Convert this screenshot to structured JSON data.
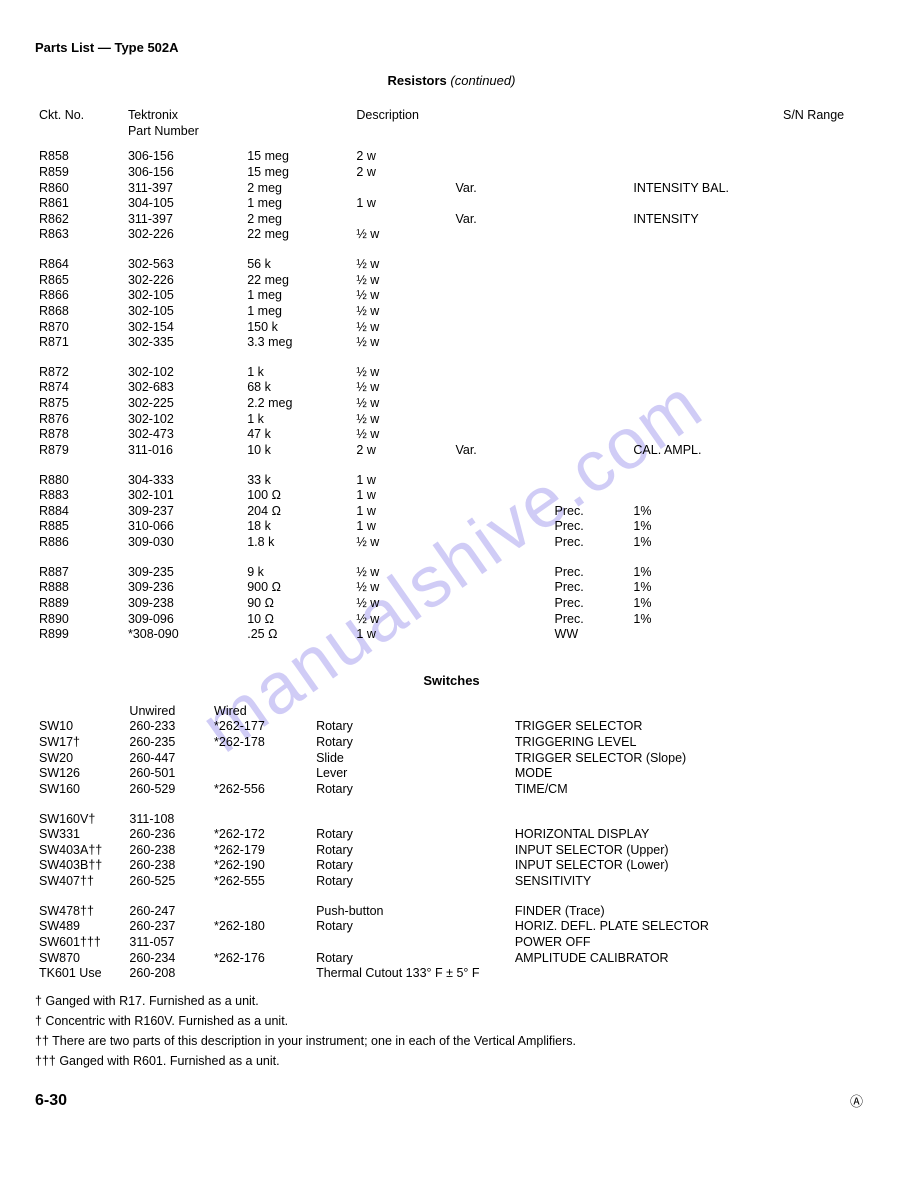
{
  "header": "Parts List — Type  502A",
  "resistors_title_bold": "Resistors",
  "resistors_title_italic": "(continued)",
  "col_headers": {
    "ckt": "Ckt. No.",
    "tek1": "Tektronix",
    "tek2": "Part Number",
    "desc": "Description",
    "sn": "S/N Range"
  },
  "resistor_groups": [
    [
      {
        "ckt": "R858",
        "pn": "306-156",
        "v": "15 meg",
        "w": "2 w",
        "t": "",
        "p": "",
        "label": "",
        "sn": ""
      },
      {
        "ckt": "R859",
        "pn": "306-156",
        "v": "15 meg",
        "w": "2 w",
        "t": "",
        "p": "",
        "label": "",
        "sn": ""
      },
      {
        "ckt": "R860",
        "pn": "311-397",
        "v": "2 meg",
        "w": "",
        "t": "Var.",
        "p": "",
        "label": "INTENSITY BAL.",
        "sn": ""
      },
      {
        "ckt": "R861",
        "pn": "304-105",
        "v": "1 meg",
        "w": "1 w",
        "t": "",
        "p": "",
        "label": "",
        "sn": ""
      },
      {
        "ckt": "R862",
        "pn": "311-397",
        "v": "2 meg",
        "w": "",
        "t": "Var.",
        "p": "",
        "label": "INTENSITY",
        "sn": ""
      },
      {
        "ckt": "R863",
        "pn": "302-226",
        "v": "22 meg",
        "w": "½ w",
        "t": "",
        "p": "",
        "label": "",
        "sn": ""
      }
    ],
    [
      {
        "ckt": "R864",
        "pn": "302-563",
        "v": "56 k",
        "w": "½ w",
        "t": "",
        "p": "",
        "label": "",
        "sn": ""
      },
      {
        "ckt": "R865",
        "pn": "302-226",
        "v": "22 meg",
        "w": "½ w",
        "t": "",
        "p": "",
        "label": "",
        "sn": ""
      },
      {
        "ckt": "R866",
        "pn": "302-105",
        "v": "1 meg",
        "w": "½ w",
        "t": "",
        "p": "",
        "label": "",
        "sn": ""
      },
      {
        "ckt": "R868",
        "pn": "302-105",
        "v": "1 meg",
        "w": "½ w",
        "t": "",
        "p": "",
        "label": "",
        "sn": ""
      },
      {
        "ckt": "R870",
        "pn": "302-154",
        "v": "150 k",
        "w": "½ w",
        "t": "",
        "p": "",
        "label": "",
        "sn": ""
      },
      {
        "ckt": "R871",
        "pn": "302-335",
        "v": "3.3 meg",
        "w": "½ w",
        "t": "",
        "p": "",
        "label": "",
        "sn": ""
      }
    ],
    [
      {
        "ckt": "R872",
        "pn": "302-102",
        "v": "1 k",
        "w": "½ w",
        "t": "",
        "p": "",
        "label": "",
        "sn": ""
      },
      {
        "ckt": "R874",
        "pn": "302-683",
        "v": "68 k",
        "w": "½ w",
        "t": "",
        "p": "",
        "label": "",
        "sn": ""
      },
      {
        "ckt": "R875",
        "pn": "302-225",
        "v": "2.2 meg",
        "w": "½ w",
        "t": "",
        "p": "",
        "label": "",
        "sn": ""
      },
      {
        "ckt": "R876",
        "pn": "302-102",
        "v": "1 k",
        "w": "½ w",
        "t": "",
        "p": "",
        "label": "",
        "sn": ""
      },
      {
        "ckt": "R878",
        "pn": "302-473",
        "v": "47 k",
        "w": "½ w",
        "t": "",
        "p": "",
        "label": "",
        "sn": ""
      },
      {
        "ckt": "R879",
        "pn": "311-016",
        "v": "10 k",
        "w": "2 w",
        "t": "Var.",
        "p": "",
        "label": "CAL. AMPL.",
        "sn": ""
      }
    ],
    [
      {
        "ckt": "R880",
        "pn": "304-333",
        "v": "33 k",
        "w": "1 w",
        "t": "",
        "p": "",
        "label": "",
        "sn": ""
      },
      {
        "ckt": "R883",
        "pn": "302-101",
        "v": "100 Ω",
        "w": "1 w",
        "t": "",
        "p": "",
        "label": "",
        "sn": ""
      },
      {
        "ckt": "R884",
        "pn": "309-237",
        "v": "204 Ω",
        "w": "1 w",
        "t": "",
        "p": "Prec.",
        "label": "1%",
        "sn": ""
      },
      {
        "ckt": "R885",
        "pn": "310-066",
        "v": "18 k",
        "w": "1 w",
        "t": "",
        "p": "Prec.",
        "label": "1%",
        "sn": ""
      },
      {
        "ckt": "R886",
        "pn": "309-030",
        "v": "1.8 k",
        "w": "½ w",
        "t": "",
        "p": "Prec.",
        "label": "1%",
        "sn": ""
      }
    ],
    [
      {
        "ckt": "R887",
        "pn": "309-235",
        "v": "9 k",
        "w": "½ w",
        "t": "",
        "p": "Prec.",
        "label": "1%",
        "sn": ""
      },
      {
        "ckt": "R888",
        "pn": "309-236",
        "v": "900 Ω",
        "w": "½ w",
        "t": "",
        "p": "Prec.",
        "label": "1%",
        "sn": ""
      },
      {
        "ckt": "R889",
        "pn": "309-238",
        "v": "90 Ω",
        "w": "½ w",
        "t": "",
        "p": "Prec.",
        "label": "1%",
        "sn": ""
      },
      {
        "ckt": "R890",
        "pn": "309-096",
        "v": "10 Ω",
        "w": "½ w",
        "t": "",
        "p": "Prec.",
        "label": "1%",
        "sn": ""
      },
      {
        "ckt": "R899",
        "pn": "*308-090",
        "v": ".25 Ω",
        "w": "1 w",
        "t": "",
        "p": "WW",
        "label": "",
        "sn": ""
      }
    ]
  ],
  "switches_title": "Switches",
  "switches_headers": {
    "unwired": "Unwired",
    "wired": "Wired"
  },
  "switch_groups": [
    [
      {
        "ckt": "SW10",
        "uw": "260-233",
        "w": "*262-177",
        "type": "Rotary",
        "desc": "TRIGGER SELECTOR"
      },
      {
        "ckt": "SW17†",
        "uw": "260-235",
        "w": "*262-178",
        "type": "Rotary",
        "desc": "TRIGGERING LEVEL"
      },
      {
        "ckt": "SW20",
        "uw": "260-447",
        "w": "",
        "type": "Slide",
        "desc": "TRIGGER SELECTOR (Slope)"
      },
      {
        "ckt": "SW126",
        "uw": "260-501",
        "w": "",
        "type": "Lever",
        "desc": "MODE"
      },
      {
        "ckt": "SW160",
        "uw": "260-529",
        "w": "*262-556",
        "type": "Rotary",
        "desc": "TIME/CM"
      }
    ],
    [
      {
        "ckt": "SW160V†",
        "uw": "311-108",
        "w": "",
        "type": "",
        "desc": ""
      },
      {
        "ckt": "SW331",
        "uw": "260-236",
        "w": "*262-172",
        "type": "Rotary",
        "desc": "HORIZONTAL DISPLAY"
      },
      {
        "ckt": "SW403A††",
        "uw": "260-238",
        "w": "*262-179",
        "type": "Rotary",
        "desc": "INPUT SELECTOR (Upper)"
      },
      {
        "ckt": "SW403B††",
        "uw": "260-238",
        "w": "*262-190",
        "type": "Rotary",
        "desc": "INPUT SELECTOR (Lower)"
      },
      {
        "ckt": "SW407††",
        "uw": "260-525",
        "w": "*262-555",
        "type": "Rotary",
        "desc": "SENSITIVITY"
      }
    ],
    [
      {
        "ckt": "SW478††",
        "uw": "260-247",
        "w": "",
        "type": "Push-button",
        "desc": "FINDER (Trace)"
      },
      {
        "ckt": "SW489",
        "uw": "260-237",
        "w": "*262-180",
        "type": "Rotary",
        "desc": "HORIZ. DEFL. PLATE SELECTOR"
      },
      {
        "ckt": "SW601†††",
        "uw": "311-057",
        "w": "",
        "type": "",
        "desc": "POWER OFF"
      },
      {
        "ckt": "SW870",
        "uw": "260-234",
        "w": "*262-176",
        "type": "Rotary",
        "desc": "AMPLITUDE CALIBRATOR"
      },
      {
        "ckt": "TK601 Use",
        "uw": "260-208",
        "w": "",
        "type": "Thermal Cutout 133° F ± 5° F",
        "desc": ""
      }
    ]
  ],
  "footnotes": [
    "† Ganged with R17.  Furnished as a unit.",
    "† Concentric with R160V.  Furnished as a unit.",
    "†† There are two parts of this description in your instrument; one in each of the Vertical Amplifiers.",
    "††† Ganged with R601.  Furnished as a unit."
  ],
  "page_number": "6-30",
  "watermark": "manualshive.com",
  "logo_char": "Ⓐ"
}
